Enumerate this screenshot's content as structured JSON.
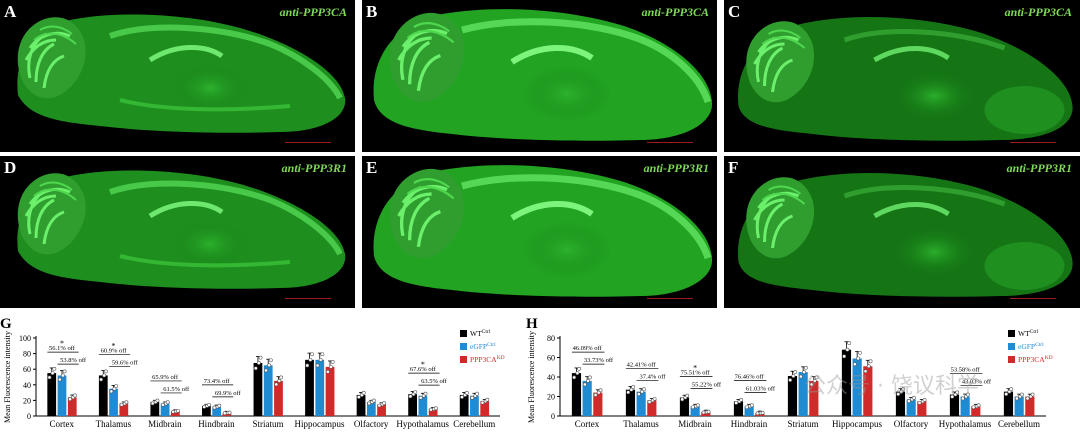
{
  "panels": [
    {
      "label": "A",
      "title": "anti-PPP3CA"
    },
    {
      "label": "B",
      "title": "anti-PPP3CA"
    },
    {
      "label": "C",
      "title": "anti-PPP3CA"
    },
    {
      "label": "D",
      "title": "anti-PPP3R1"
    },
    {
      "label": "E",
      "title": "anti-PPP3R1"
    },
    {
      "label": "F",
      "title": "anti-PPP3R1"
    }
  ],
  "colors": {
    "wt": "#000000",
    "egfp": "#1f8bd3",
    "ko": "#d02a2a",
    "tissue": "#1e8f1e",
    "tissue_bright": "#3fd13f"
  },
  "chart_data": [
    {
      "panel": "G",
      "type": "bar",
      "ylabel": "Mean Fluorescence intensity",
      "ylim": [
        0,
        100
      ],
      "yticks": [
        0,
        20,
        40,
        60,
        80,
        100
      ],
      "categories": [
        "Cortex",
        "Thalamus",
        "Midbrain",
        "Hindbrain",
        "Striatum",
        "Hippocampus",
        "Olfactory",
        "Hypothalamus",
        "Cerebellum"
      ],
      "legend": [
        {
          "base": "WT",
          "sup": "Ctrl"
        },
        {
          "base": "eGFP",
          "sup": "Ctrl"
        },
        {
          "base": "PPP3CA",
          "sup": "KD"
        }
      ],
      "series": [
        {
          "values": [
            55,
            52,
            18,
            13,
            68,
            72,
            27,
            28,
            27
          ]
        },
        {
          "values": [
            52,
            35,
            16,
            12,
            65,
            72,
            18,
            26,
            26
          ]
        },
        {
          "values": [
            24,
            16,
            6,
            4,
            45,
            63,
            15,
            9,
            19
          ]
        }
      ],
      "annotations": [
        {
          "cat": 0,
          "top": "56.1% off",
          "bottom": "53.8% off",
          "star": "*"
        },
        {
          "cat": 1,
          "top": "60.9% off",
          "bottom": "59.6% off",
          "star": "*"
        },
        {
          "cat": 2,
          "top": "65.9% off",
          "bottom": "61.5% off",
          "star": ""
        },
        {
          "cat": 3,
          "top": "73.4% off",
          "bottom": "69.9% off",
          "star": ""
        },
        {
          "cat": 7,
          "top": "67.6% off",
          "bottom": "63.5% off",
          "star": "*"
        }
      ]
    },
    {
      "panel": "H",
      "type": "bar",
      "ylabel": "Mean Fluorescence intensity",
      "ylim": [
        0,
        80
      ],
      "yticks": [
        0,
        20,
        40,
        60,
        80
      ],
      "categories": [
        "Cortex",
        "Thalamus",
        "Midbrain",
        "Hindbrain",
        "Striatum",
        "Hippocampus",
        "Olfactory",
        "Hypothalamus",
        "Cerebellum"
      ],
      "legend": [
        {
          "base": "WT",
          "sup": "Ctrl"
        },
        {
          "base": "eGFP",
          "sup": "Ctrl"
        },
        {
          "base": "PPP3CA",
          "sup": "KD"
        }
      ],
      "series": [
        {
          "values": [
            44,
            27,
            19,
            15,
            41,
            68,
            25,
            22,
            25
          ]
        },
        {
          "values": [
            36,
            25,
            10,
            10,
            45,
            59,
            17,
            20,
            20
          ]
        },
        {
          "values": [
            24,
            16,
            4,
            3,
            36,
            51,
            15,
            10,
            20
          ]
        }
      ],
      "annotations": [
        {
          "cat": 0,
          "top": "46.09% off",
          "bottom": "33.73% off",
          "star": ""
        },
        {
          "cat": 1,
          "top": "42.41% off",
          "bottom": "37.4% off",
          "star": ""
        },
        {
          "cat": 2,
          "top": "75.51% off",
          "bottom": "55.22% off",
          "star": "*"
        },
        {
          "cat": 3,
          "top": "76.46% off",
          "bottom": "61.03% off",
          "star": ""
        },
        {
          "cat": 7,
          "top": "53.58% off",
          "bottom": "43.03% off",
          "star": ""
        }
      ]
    }
  ],
  "watermark": "公众号 · 饶议科学"
}
